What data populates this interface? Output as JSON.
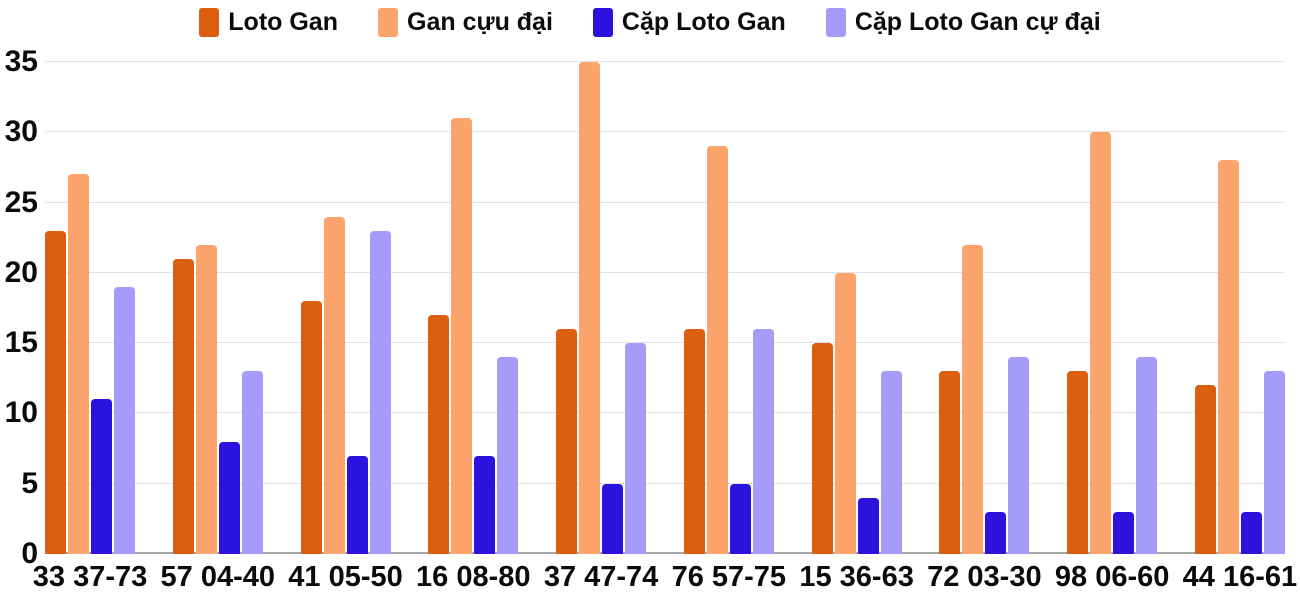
{
  "chart_data": {
    "type": "bar",
    "title": "",
    "xlabel": "",
    "ylabel": "",
    "categories": [
      "33 37-73",
      "57 04-40",
      "41 05-50",
      "16 08-80",
      "37 47-74",
      "76 57-75",
      "15 36-63",
      "72 03-30",
      "98 06-60",
      "44 16-61"
    ],
    "series": [
      {
        "name": "Loto Gan",
        "color": "#dc5f10",
        "values": [
          23,
          21,
          18,
          17,
          16,
          16,
          15,
          13,
          13,
          12
        ]
      },
      {
        "name": "Gan cựu đại",
        "color": "#fca46b",
        "values": [
          27,
          22,
          24,
          31,
          35,
          29,
          20,
          22,
          30,
          28
        ]
      },
      {
        "name": "Cặp Loto Gan",
        "color": "#2b12dc",
        "values": [
          11,
          8,
          7,
          7,
          5,
          5,
          4,
          3,
          3,
          3
        ]
      },
      {
        "name": "Cặp Loto Gan cự đại",
        "color": "#a59cfa",
        "values": [
          19,
          13,
          23,
          14,
          15,
          16,
          13,
          14,
          14,
          13
        ]
      }
    ],
    "ylim": [
      0,
      35
    ],
    "yticks": [
      0,
      5,
      10,
      15,
      20,
      25,
      30,
      35
    ],
    "grid": true,
    "legend_position": "top",
    "colors": {
      "grid": "#e1e1e1",
      "baseline": "#a8a8a8",
      "text": "#0b0b0b",
      "background": "#ffffff"
    }
  }
}
